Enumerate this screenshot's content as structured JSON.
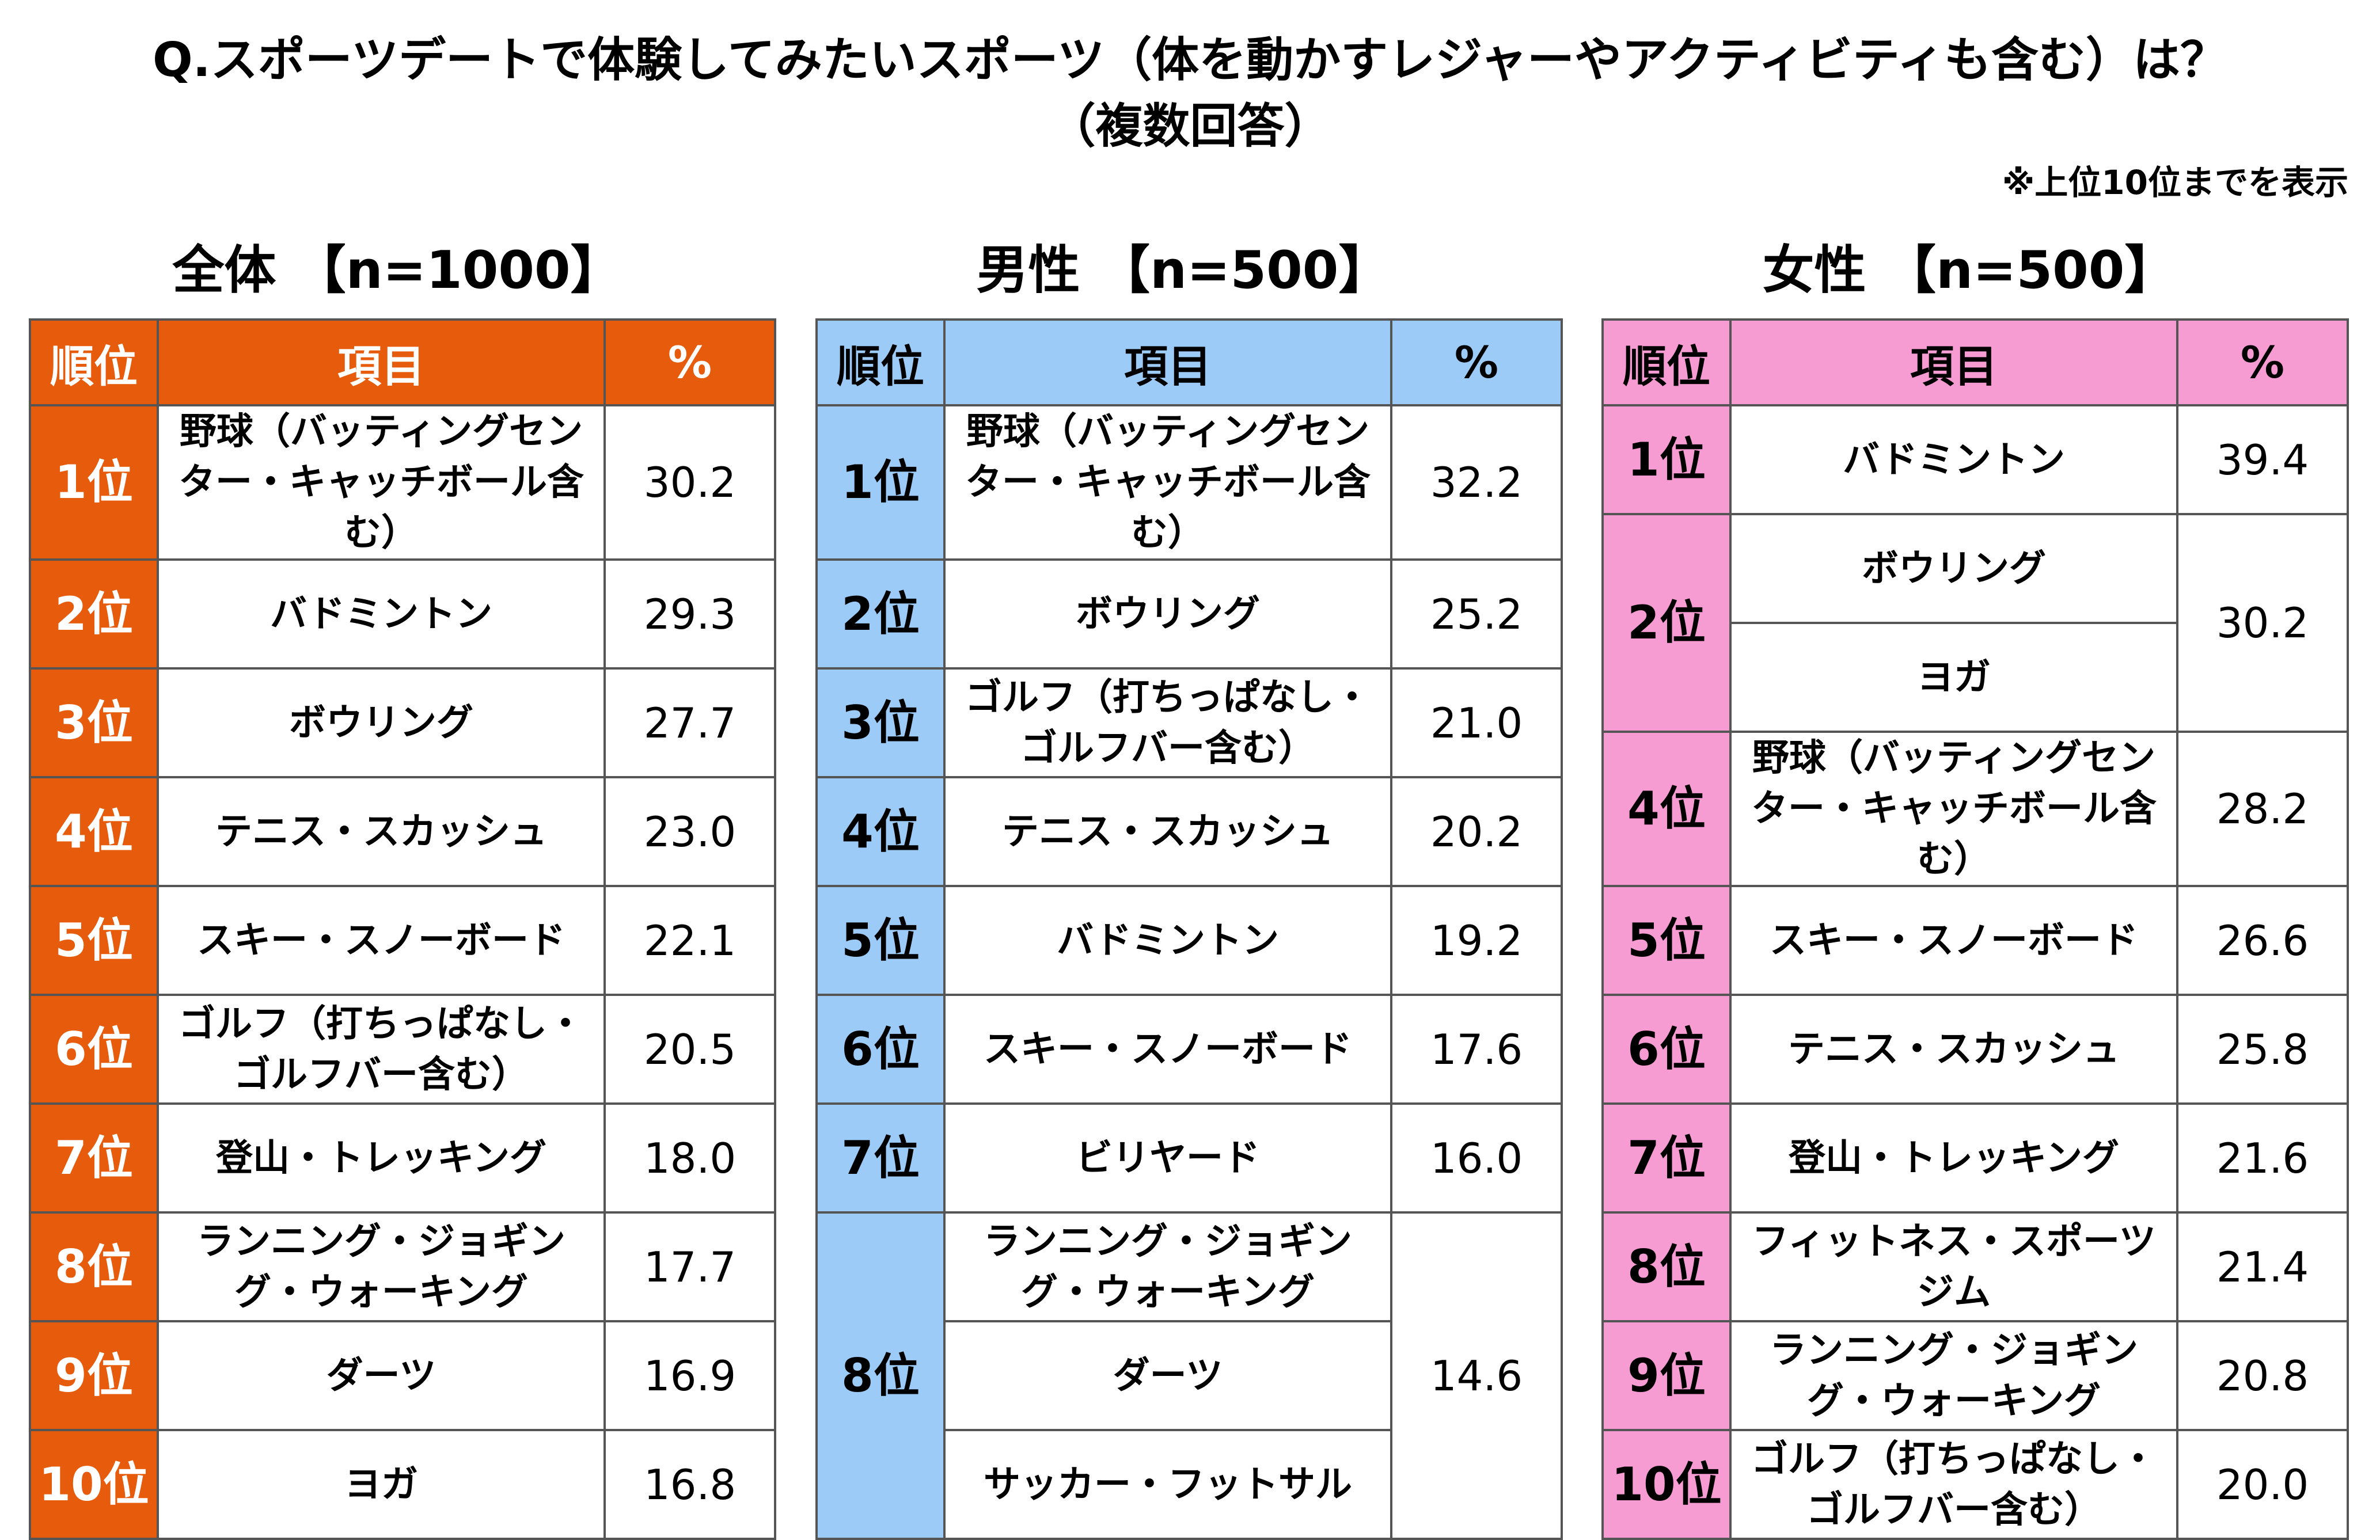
{
  "title_line1": "Q.スポーツデートで体験してみたいスポーツ（体を動かすレジャーやアクティビティも含む）は？",
  "title_line2": "（複数回答）",
  "note": "※上位10位までを表示",
  "header": {
    "rank": "順位",
    "item": "項目",
    "pct": "%"
  },
  "colors": {
    "overall": "#e65c0c",
    "male": "#9dcbf7",
    "female": "#f79bd3"
  },
  "chart_data": [
    {
      "type": "table",
      "title": "全体 【n=1000】",
      "columns": [
        "順位",
        "項目",
        "%"
      ],
      "rows": [
        {
          "rank": "1位",
          "item": "野球（バッティングセンター・キャッチボール含む）",
          "value": 30.2
        },
        {
          "rank": "2位",
          "item": "バドミントン",
          "value": 29.3
        },
        {
          "rank": "3位",
          "item": "ボウリング",
          "value": 27.7
        },
        {
          "rank": "4位",
          "item": "テニス・スカッシュ",
          "value": 23.0
        },
        {
          "rank": "5位",
          "item": "スキー・スノーボード",
          "value": 22.1
        },
        {
          "rank": "6位",
          "item": "ゴルフ（打ちっぱなし・ゴルフバー含む）",
          "value": 20.5
        },
        {
          "rank": "7位",
          "item": "登山・トレッキング",
          "value": 18.0
        },
        {
          "rank": "8位",
          "item": "ランニング・ジョギング・ウォーキング",
          "value": 17.7
        },
        {
          "rank": "9位",
          "item": "ダーツ",
          "value": 16.9
        },
        {
          "rank": "10位",
          "item": "ヨガ",
          "value": 16.8
        }
      ]
    },
    {
      "type": "table",
      "title": "男性 【n=500】",
      "columns": [
        "順位",
        "項目",
        "%"
      ],
      "rows": [
        {
          "rank": "1位",
          "item": "野球（バッティングセンター・キャッチボール含む）",
          "value": 32.2
        },
        {
          "rank": "2位",
          "item": "ボウリング",
          "value": 25.2
        },
        {
          "rank": "3位",
          "item": "ゴルフ（打ちっぱなし・ゴルフバー含む）",
          "value": 21.0
        },
        {
          "rank": "4位",
          "item": "テニス・スカッシュ",
          "value": 20.2
        },
        {
          "rank": "5位",
          "item": "バドミントン",
          "value": 19.2
        },
        {
          "rank": "6位",
          "item": "スキー・スノーボード",
          "value": 17.6
        },
        {
          "rank": "7位",
          "item": "ビリヤード",
          "value": 16.0
        },
        {
          "rank": "8位",
          "item": "ランニング・ジョギング・ウォーキング",
          "value": 14.6
        },
        {
          "rank": "8位",
          "item": "ダーツ",
          "value": 14.6
        },
        {
          "rank": "8位",
          "item": "サッカー・フットサル",
          "value": 14.6
        }
      ]
    },
    {
      "type": "table",
      "title": "女性 【n=500】",
      "columns": [
        "順位",
        "項目",
        "%"
      ],
      "rows": [
        {
          "rank": "1位",
          "item": "バドミントン",
          "value": 39.4
        },
        {
          "rank": "2位",
          "item": "ボウリング",
          "value": 30.2
        },
        {
          "rank": "2位",
          "item": "ヨガ",
          "value": 30.2
        },
        {
          "rank": "4位",
          "item": "野球（バッティングセンター・キャッチボール含む）",
          "value": 28.2
        },
        {
          "rank": "5位",
          "item": "スキー・スノーボード",
          "value": 26.6
        },
        {
          "rank": "6位",
          "item": "テニス・スカッシュ",
          "value": 25.8
        },
        {
          "rank": "7位",
          "item": "登山・トレッキング",
          "value": 21.6
        },
        {
          "rank": "8位",
          "item": "フィットネス・スポーツジム",
          "value": 21.4
        },
        {
          "rank": "9位",
          "item": "ランニング・ジョギング・ウォーキング",
          "value": 20.8
        },
        {
          "rank": "10位",
          "item": "ゴルフ（打ちっぱなし・ゴルフバー含む）",
          "value": 20.0
        }
      ]
    }
  ]
}
